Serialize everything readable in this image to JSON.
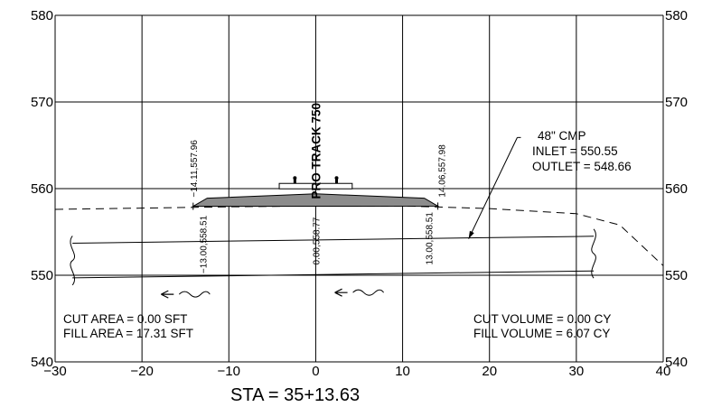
{
  "chart_data": {
    "type": "cross-section",
    "xlim": [
      -30,
      40
    ],
    "ylim": [
      540,
      580
    ],
    "x_ticks": [
      -30,
      -20,
      -10,
      0,
      10,
      20,
      30,
      40
    ],
    "x_tick_labels": [
      "−30",
      "−20",
      "−10",
      "0",
      "10",
      "20",
      "30",
      "40"
    ],
    "y_ticks": [
      540,
      550,
      560,
      570,
      580
    ],
    "y_tick_labels": [
      "540",
      "550",
      "560",
      "570",
      "580"
    ],
    "grid": true,
    "existing_ground": [
      [
        -30,
        557.6
      ],
      [
        -10,
        557.9
      ],
      [
        0,
        558.0
      ],
      [
        10,
        558.0
      ],
      [
        20,
        557.7
      ],
      [
        30,
        557.1
      ],
      [
        35,
        555.8
      ],
      [
        40,
        551.1
      ]
    ],
    "proposed_section": [
      [
        -14.11,
        557.96
      ],
      [
        -12.5,
        558.9
      ],
      [
        0,
        559.4
      ],
      [
        12.5,
        558.9
      ],
      [
        14.06,
        557.98
      ]
    ],
    "track_rail": [
      [
        -4.2,
        560.6
      ],
      [
        4.2,
        560.6
      ]
    ],
    "pipe_top": [
      [
        -28,
        553.7
      ],
      [
        32,
        554.5
      ]
    ],
    "pipe_bottom": [
      [
        -28,
        549.7
      ],
      [
        32,
        550.5
      ]
    ],
    "point_labels": [
      {
        "x": -14.11,
        "y": 557.96,
        "text": "−14.11,557.96"
      },
      {
        "x": -13.0,
        "y": 551,
        "text": "−13.00,558.51"
      },
      {
        "x": 0.0,
        "y": 551.5,
        "text": "0.00,558.77"
      },
      {
        "x": 13.0,
        "y": 551.5,
        "text": "13.00,558.51"
      },
      {
        "x": 14.06,
        "y": 557.98,
        "text": "14.06,557.98"
      }
    ],
    "centerline_label": "PRO TRACK 750",
    "pipe_note": {
      "title": "48\" CMP",
      "inlet": "INLET = 550.55",
      "outlet": "OUTLET = 548.66"
    },
    "cut_area": "CUT AREA = 0.00 SFT",
    "fill_area": "FILL AREA = 17.31 SFT",
    "cut_volume": "CUT VOLUME = 0.00 CY",
    "fill_volume": "FILL VOLUME = 6.07 CY",
    "station": "STA = 35+13.63"
  }
}
